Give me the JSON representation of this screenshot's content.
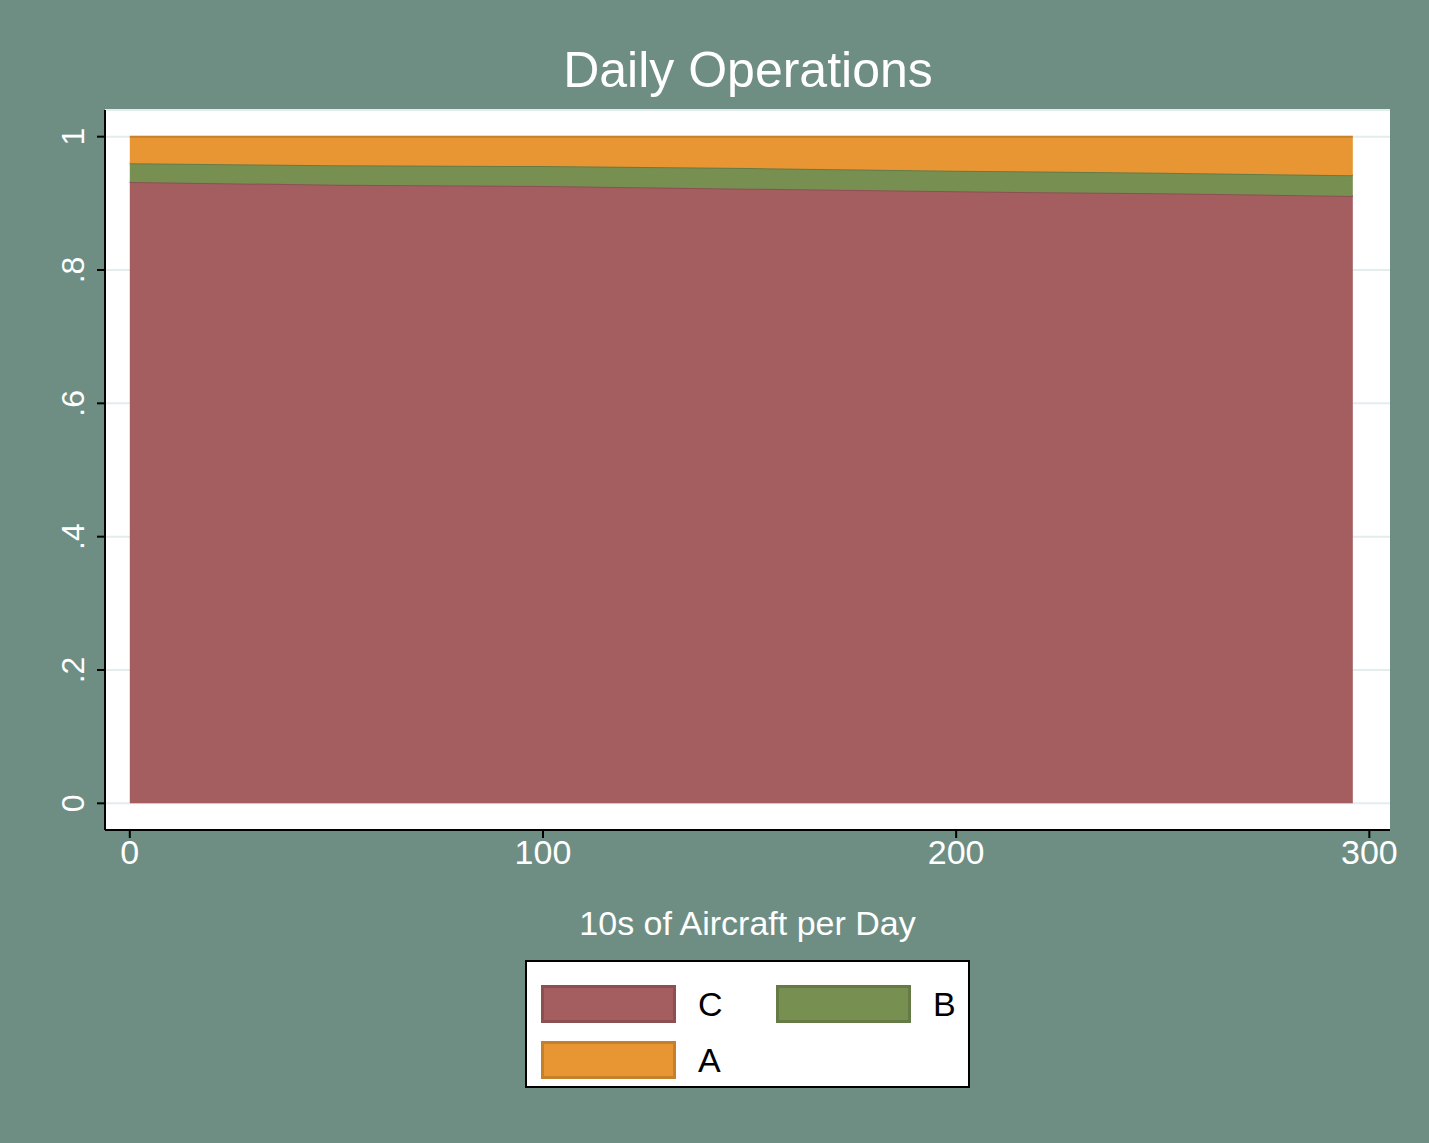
{
  "chart_data": {
    "type": "stacked_area",
    "title": "Daily Operations",
    "x_label": "10s of Aircraft per Day",
    "x": [
      0,
      50,
      100,
      150,
      200,
      250,
      296
    ],
    "series": [
      {
        "name": "C",
        "color": "#a45e60",
        "values": [
          0.932,
          0.928,
          0.926,
          0.922,
          0.918,
          0.915,
          0.911
        ]
      },
      {
        "name": "B",
        "color": "#788f52",
        "values": [
          0.028,
          0.029,
          0.03,
          0.031,
          0.031,
          0.031,
          0.031
        ]
      },
      {
        "name": "A",
        "color": "#e89634",
        "values": [
          0.04,
          0.043,
          0.044,
          0.047,
          0.051,
          0.054,
          0.058
        ]
      }
    ],
    "stacked": true,
    "xlim": [
      -6,
      305
    ],
    "xticks": [
      0,
      100,
      200,
      300
    ],
    "ylim": [
      -0.04,
      1.04
    ],
    "yticks": [
      0,
      {
        "value": 0.2,
        "label": ".2"
      },
      {
        "value": 0.4,
        "label": ".4"
      },
      {
        "value": 0.6,
        "label": ".6"
      },
      {
        "value": 0.8,
        "label": ".8"
      },
      1
    ],
    "grid": true
  }
}
